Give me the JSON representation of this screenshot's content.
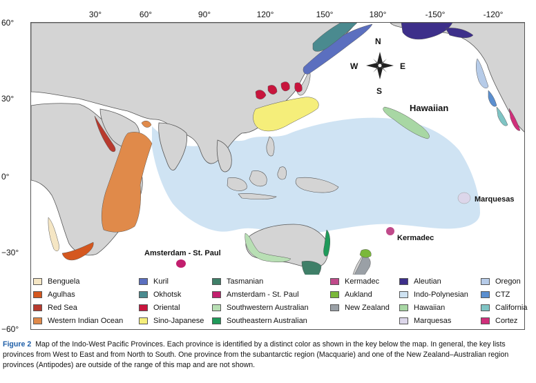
{
  "axes": {
    "lon_labels": [
      "30°",
      "60°",
      "90°",
      "120°",
      "150°",
      "180°",
      "-150°",
      "-120°"
    ],
    "lat_labels": [
      "60°",
      "30°",
      "0°",
      "−30°",
      "−60°"
    ]
  },
  "map_labels": {
    "hawaiian": "Hawaiian",
    "marquesas": "Marquesas",
    "kermadec": "Kermadec",
    "amsterdam": "Amsterdam - St. Paul"
  },
  "compass": {
    "n": "N",
    "s": "S",
    "e": "E",
    "w": "W"
  },
  "colors": {
    "ocean": "#ffffff",
    "land": "#d4d4d4",
    "indo_polynesian": "#cfe3f3",
    "border": "#555555"
  },
  "legend": [
    {
      "label": "Benguela",
      "color": "#f5e6c4"
    },
    {
      "label": "Agulhas",
      "color": "#d4571f"
    },
    {
      "label": "Red Sea",
      "color": "#b83a2e"
    },
    {
      "label": "Western Indian Ocean",
      "color": "#e08a4a"
    },
    {
      "label": "Kuril",
      "color": "#5b6fbf"
    },
    {
      "label": "Okhotsk",
      "color": "#4a8a8f"
    },
    {
      "label": "Oriental",
      "color": "#c8153d"
    },
    {
      "label": "Sino-Japanese",
      "color": "#f5ee7a"
    },
    {
      "label": "Tasmanian",
      "color": "#3f7f68"
    },
    {
      "label": "Amsterdam - St. Paul",
      "color": "#c21f6e"
    },
    {
      "label": "Southwestern Australian",
      "color": "#b8dfb4"
    },
    {
      "label": "Southeastern Australian",
      "color": "#1f9a5a"
    },
    {
      "label": "Kermadec",
      "color": "#c04a8a"
    },
    {
      "label": "Aukland",
      "color": "#7ab83a"
    },
    {
      "label": "New Zealand",
      "color": "#9aa0a6"
    },
    {
      "label": "Aleutian",
      "color": "#3d2f8a"
    },
    {
      "label": "Indo-Polynesian",
      "color": "#cfe3f3"
    },
    {
      "label": "Hawaiian",
      "color": "#a8d7a4"
    },
    {
      "label": "Marquesas",
      "color": "#dcd6ea"
    },
    {
      "label": "Oregon",
      "color": "#b6cbe8"
    },
    {
      "label": "CTZ",
      "color": "#5b8fcf"
    },
    {
      "label": "California",
      "color": "#7fc4c4"
    },
    {
      "label": "Cortez",
      "color": "#cf2f7a"
    }
  ],
  "caption": {
    "fig_num": "Figure 2",
    "text": "Map of the Indo-West Pacific Provinces. Each province is identified by a distinct color as shown in the key below the map. In general, the key lists provinces from West to East and from North to South. One province from the subantarctic region (Macquarie) and one of the New Zealand–Australian region provinces (Antipodes) are outside of the range of this map and are not shown."
  }
}
